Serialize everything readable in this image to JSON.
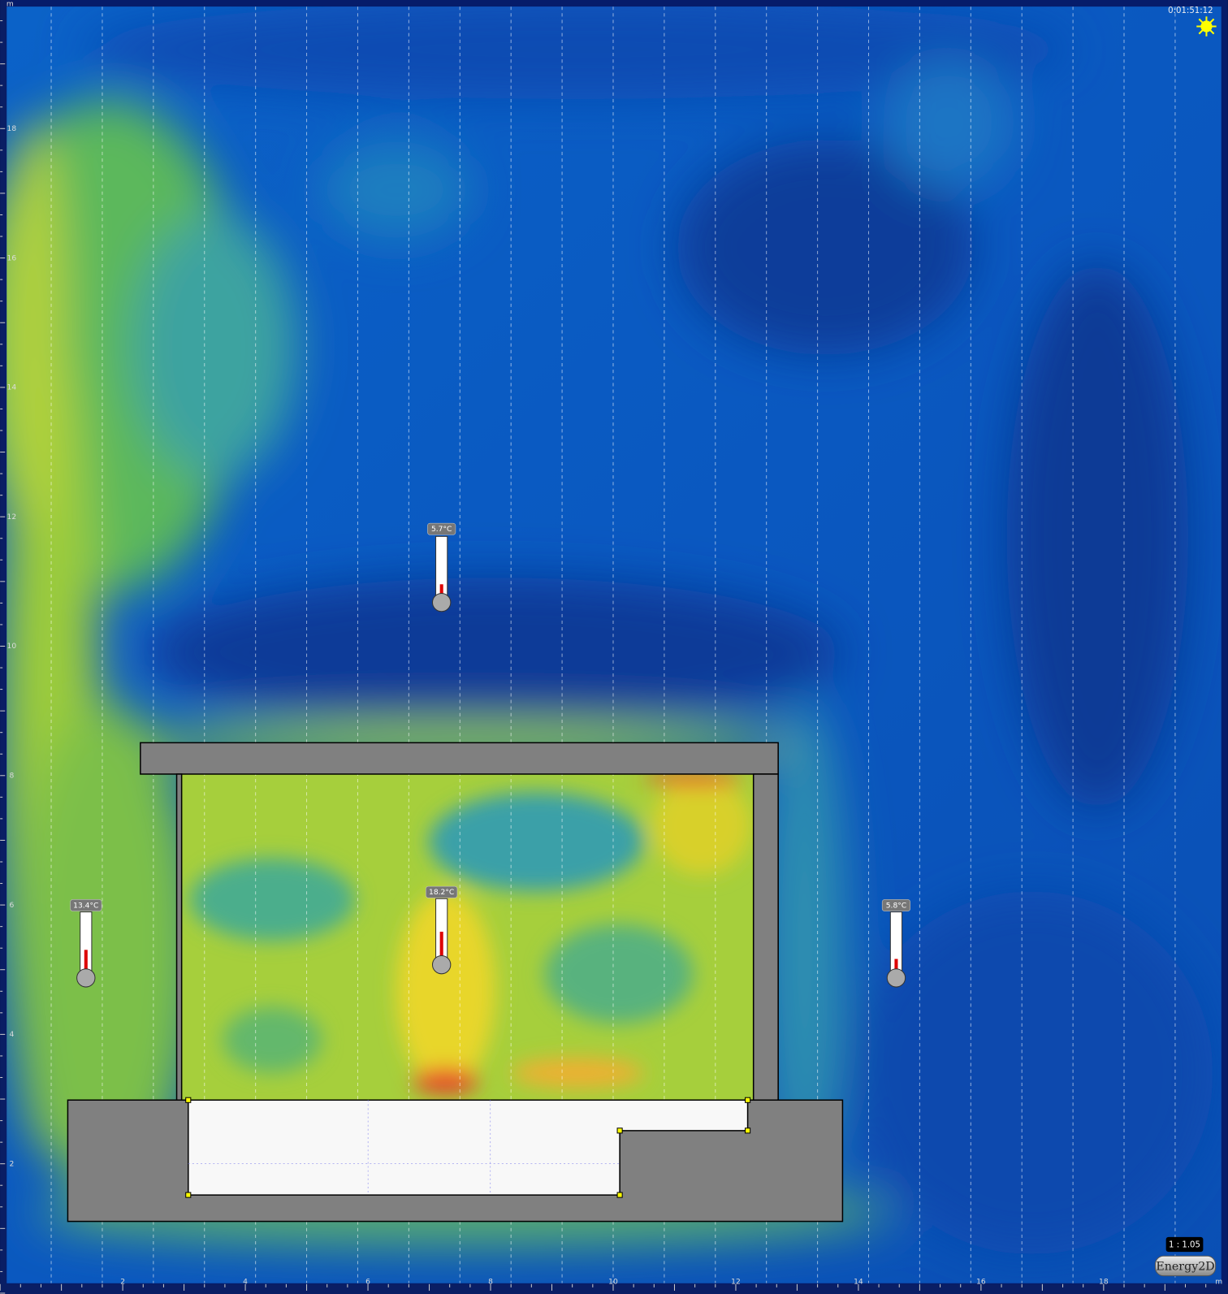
{
  "app": "Energy2D",
  "clock": "0:01:51:12",
  "scale": "1 : 1.05",
  "ruler": {
    "x_unit": "m",
    "y_unit": "m",
    "x_ticks": [
      "2",
      "4",
      "6",
      "8",
      "10",
      "12",
      "14",
      "16",
      "18"
    ],
    "y_ticks": [
      "18",
      "16",
      "14",
      "12",
      "10",
      "8",
      "6",
      "4",
      "2"
    ]
  },
  "thermometers": [
    {
      "label": "5.7°C"
    },
    {
      "label": "18.2°C"
    },
    {
      "label": "13.4°C"
    },
    {
      "label": "5.8°C"
    }
  ]
}
